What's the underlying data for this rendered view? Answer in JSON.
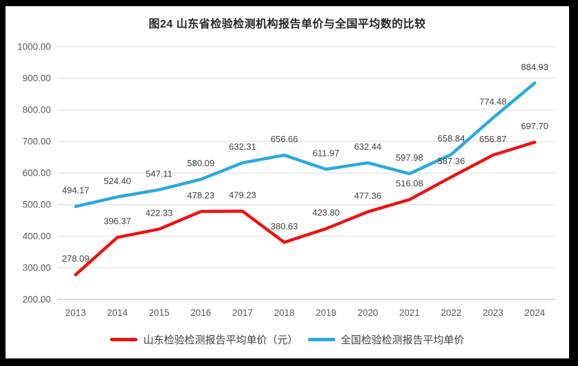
{
  "title": "图24  山东省检验检测机构报告单价与全国平均数的比较",
  "chart_data": {
    "type": "line",
    "title": "图24  山东省检验检测机构报告单价与全国平均数的比较",
    "categories": [
      "2013",
      "2014",
      "2015",
      "2016",
      "2017",
      "2018",
      "2019",
      "2020",
      "2021",
      "2022",
      "2023",
      "2024"
    ],
    "series": [
      {
        "name": "山东检验检测报告平均单价（元）",
        "color": "#EC1212",
        "values": [
          278.09,
          396.37,
          422.33,
          478.23,
          479.23,
          380.63,
          423.8,
          477.36,
          516.08,
          587.36,
          656.87,
          697.7
        ]
      },
      {
        "name": "全国检验检测报告平均单价",
        "color": "#29A9E1",
        "values": [
          494.17,
          524.4,
          547.11,
          580.09,
          632.31,
          656.66,
          611.97,
          632.44,
          597.98,
          658.84,
          774.48,
          884.93
        ]
      }
    ],
    "ylim": [
      200,
      1000
    ],
    "ytick_step": 100,
    "ytick_decimals": 2,
    "grid": true,
    "data_labels": true,
    "legend_position": "bottom",
    "colors": {
      "gridline": "#D9D9D9",
      "axis_line": "#BFBFBF",
      "axis_text": "#595959",
      "data_label_text": "#404040",
      "title_text": "#262626",
      "frame_border": "#000000",
      "background": "#FFFFFF"
    }
  }
}
